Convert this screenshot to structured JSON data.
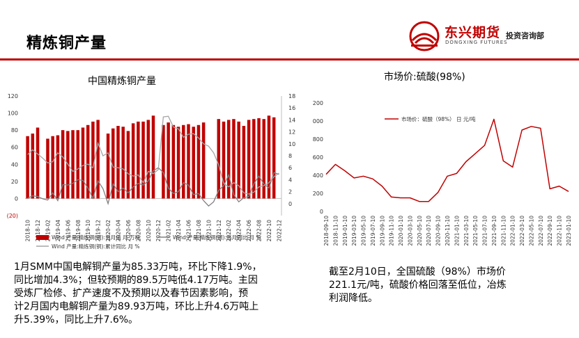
{
  "header": {
    "title": "精炼铜产量",
    "logo_cn": "东兴期货",
    "logo_en": "DONGXING FUTURES",
    "logo_dept": "投资咨询部",
    "accent": "#c00000"
  },
  "chart_data": [
    {
      "type": "bar",
      "title": "中国精炼铜产量",
      "x": [
        "2018-10",
        "2018-11",
        "2018-12",
        "2019-01",
        "2019-02",
        "2019-03",
        "2019-04",
        "2019-05",
        "2019-06",
        "2019-07",
        "2019-08",
        "2019-09",
        "2019-10",
        "2019-11",
        "2019-12",
        "2020-01",
        "2020-02",
        "2020-03",
        "2020-04",
        "2020-05",
        "2020-06",
        "2020-07",
        "2020-08",
        "2020-09",
        "2020-10",
        "2020-11",
        "2020-12",
        "2021-01",
        "2021-02",
        "2021-03",
        "2021-04",
        "2021-05",
        "2021-06",
        "2021-07",
        "2021-08",
        "2021-09",
        "2021-10",
        "2021-11",
        "2021-12",
        "2022-01",
        "2022-02",
        "2022-03",
        "2022-04",
        "2022-05",
        "2022-06",
        "2022-07",
        "2022-08",
        "2022-09",
        "2022-10",
        "2022-11",
        "2022-12"
      ],
      "xticks": [
        "2018-10",
        "2018-12",
        "2019-02",
        "2019-04",
        "2019-06",
        "2019-08",
        "2019-10",
        "2019-12",
        "2020-02",
        "2020-04",
        "2020-06",
        "2020-08",
        "2020-10",
        "2020-12",
        "2021-02",
        "2021-04",
        "2021-06",
        "2021-08",
        "2021-10",
        "2021-12",
        "2022-02",
        "2022-04",
        "2022-06",
        "2022-08",
        "2022-10",
        "2022-12"
      ],
      "left_axis": {
        "ticks": [
          0,
          20,
          40,
          60,
          80,
          100,
          120
        ],
        "min_label": "(20)",
        "range": [
          -20,
          120
        ]
      },
      "right_axis": {
        "ticks": [
          0,
          2,
          4,
          6,
          8,
          10,
          12,
          14,
          16,
          18
        ],
        "range": [
          -2,
          18
        ]
      },
      "series": [
        {
          "name": "Wind 产量:精炼铜(铜):当月值 月 万吨",
          "axis": "left",
          "kind": "bar",
          "color": "#c00000",
          "values": [
            73,
            76,
            83,
            null,
            70,
            73,
            74,
            80,
            79,
            80,
            80,
            83,
            86,
            90,
            92,
            null,
            76,
            82,
            85,
            84,
            79,
            88,
            90,
            90,
            92,
            97,
            null,
            86,
            89,
            86,
            84,
            86,
            87,
            84,
            86,
            89,
            null,
            null,
            93,
            90,
            92,
            93,
            90,
            85,
            92,
            93,
            94,
            93,
            97,
            95,
            null
          ]
        },
        {
          "name": "Wind 产量:精炼铜(铜):当月同比 月 %",
          "axis": "right",
          "kind": "line",
          "color": "#808080",
          "values": [
            0.9,
            1.3,
            1.2,
            0.8,
            0.6,
            1.8,
            0.5,
            3.2,
            3.1,
            3.4,
            4.0,
            3.9,
            2.6,
            0.9,
            3.8,
            2.5,
            0.0,
            3.3,
            2.0,
            2.6,
            1.8,
            2.8,
            3.4,
            3.1,
            3.8,
            5.5,
            6.0,
            5.2,
            2.6,
            1.7,
            2.0,
            3.5,
            3.1,
            1.5,
            1.7,
            0.5,
            -0.4,
            0.3,
            2.2,
            3.0,
            4.8,
            1.5,
            0.3,
            1.0,
            1.2,
            3.3,
            4.6,
            3.3,
            2.6,
            5.2,
            4.9
          ]
        },
        {
          "name": "Wind 产量:精炼铜(铜):累计同比 月 %",
          "axis": "right",
          "kind": "line",
          "color": "#a6a6a6",
          "values": [
            8.2,
            9.0,
            8.3,
            7.6,
            6.8,
            7.0,
            8.5,
            7.8,
            6.6,
            5.4,
            5.8,
            6.4,
            6.6,
            6.0,
            10.1,
            8.0,
            8.5,
            6.1,
            6.0,
            5.8,
            5.0,
            4.6,
            4.8,
            3.5,
            5.4,
            5.0,
            5.7,
            14.5,
            14.6,
            12.8,
            12.5,
            11.1,
            11.6,
            11.7,
            11.0,
            10.0,
            9.6,
            8.5,
            6.5,
            3.4,
            2.8,
            3.5,
            3.0,
            1.8,
            1.6,
            1.9,
            2.8,
            3.0,
            3.5,
            4.5,
            5.1
          ]
        }
      ]
    },
    {
      "type": "line",
      "title": "市场价:硫酸(98%)",
      "x": [
        "2018-09-10",
        "2018-11-10",
        "2019-01-10",
        "2019-03-10",
        "2019-05-10",
        "2019-07-10",
        "2019-09-10",
        "2019-11-10",
        "2020-01-10",
        "2020-03-10",
        "2020-05-10",
        "2020-07-10",
        "2020-09-10",
        "2020-11-10",
        "2021-01-10",
        "2021-03-10",
        "2021-05-10",
        "2021-07-10",
        "2021-09-10",
        "2021-11-10",
        "2022-01-10",
        "2022-03-10",
        "2022-05-10",
        "2022-07-10",
        "2022-09-10",
        "2022-11-10",
        "2023-01-10"
      ],
      "y_axis": {
        "ticks": [
          0,
          200,
          400,
          600,
          800,
          1000,
          1200
        ],
        "tick_labels": [
          "0",
          "200",
          "400",
          "600",
          "800",
          "1,000",
          "1,200"
        ],
        "range": [
          0,
          1200
        ]
      },
      "legend": "top-left",
      "series": [
        {
          "name": "市场价：硫酸（98%） 日 元/吨",
          "color": "#c00000",
          "values": [
            410,
            520,
            450,
            370,
            390,
            360,
            280,
            160,
            150,
            150,
            110,
            110,
            210,
            390,
            420,
            550,
            640,
            730,
            1020,
            560,
            490,
            900,
            940,
            920,
            250,
            280,
            221
          ]
        }
      ]
    }
  ],
  "text_left": [
    "1月SMM中国电解铜产量为85.33万吨，环比下降1.9%，",
    "同比增加4.3%；但较预期的89.5万吨低4.17万吨。主因",
    "受炼厂检修、扩产速度不及预期以及春节因素影响，预",
    "计2月国内电解铜产量为89.93万吨，环比上升4.6万吨上",
    "升5.39%，同比上升7.6%。"
  ],
  "text_right": [
    "截至2月10日，全国硫酸（98%）市场价",
    "221.1元/吨，硫酸价格回落至低位，冶炼",
    "利润降低。"
  ]
}
